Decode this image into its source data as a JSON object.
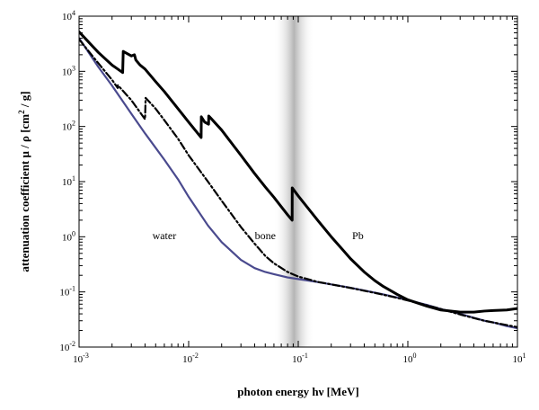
{
  "chart_data": {
    "type": "line",
    "xlabel": "photon energy  hν  [MeV]",
    "ylabel_main": "attenuation coefficient   μ / ρ  [cm",
    "ylabel_exp": "2",
    "ylabel_tail": " / g]",
    "x_scale": "log",
    "y_scale": "log",
    "xlim": [
      0.001,
      10
    ],
    "ylim": [
      0.01,
      10000
    ],
    "grid": false,
    "legend": "none (inline labels)",
    "x_ticks": [
      {
        "base": "10",
        "exp": "-3",
        "value": 0.001
      },
      {
        "base": "10",
        "exp": "-2",
        "value": 0.01
      },
      {
        "base": "10",
        "exp": "-1",
        "value": 0.1
      },
      {
        "base": "10",
        "exp": "0",
        "value": 1
      },
      {
        "base": "10",
        "exp": "1",
        "value": 10
      }
    ],
    "y_ticks": [
      {
        "base": "10",
        "exp": "-2",
        "value": 0.01
      },
      {
        "base": "10",
        "exp": "-1",
        "value": 0.1
      },
      {
        "base": "10",
        "exp": "0",
        "value": 1
      },
      {
        "base": "10",
        "exp": "1",
        "value": 10
      },
      {
        "base": "10",
        "exp": "2",
        "value": 100
      },
      {
        "base": "10",
        "exp": "3",
        "value": 1000
      },
      {
        "base": "10",
        "exp": "4",
        "value": 10000
      }
    ],
    "shaded_band": {
      "x_min": 0.06,
      "x_max": 0.14,
      "color": "#b4b4b4"
    },
    "series": [
      {
        "name": "water",
        "color": "#4a4a8e",
        "style": "solid",
        "label_at": [
          0.006,
          0.9
        ],
        "points": [
          [
            0.001,
            4000
          ],
          [
            0.0015,
            1200
          ],
          [
            0.002,
            550
          ],
          [
            0.003,
            170
          ],
          [
            0.004,
            75
          ],
          [
            0.005,
            41
          ],
          [
            0.006,
            25
          ],
          [
            0.008,
            11
          ],
          [
            0.01,
            5.3
          ],
          [
            0.015,
            1.6
          ],
          [
            0.02,
            0.8
          ],
          [
            0.03,
            0.38
          ],
          [
            0.04,
            0.27
          ],
          [
            0.05,
            0.23
          ],
          [
            0.06,
            0.21
          ],
          [
            0.08,
            0.183
          ],
          [
            0.1,
            0.171
          ],
          [
            0.15,
            0.151
          ],
          [
            0.2,
            0.137
          ],
          [
            0.3,
            0.119
          ],
          [
            0.4,
            0.106
          ],
          [
            0.5,
            0.097
          ],
          [
            0.6,
            0.09
          ],
          [
            0.8,
            0.079
          ],
          [
            1,
            0.071
          ],
          [
            1.5,
            0.058
          ],
          [
            2,
            0.049
          ],
          [
            3,
            0.04
          ],
          [
            4,
            0.034
          ],
          [
            5,
            0.03
          ],
          [
            6,
            0.028
          ],
          [
            8,
            0.024
          ],
          [
            10,
            0.022
          ]
        ]
      },
      {
        "name": "bone",
        "color": "#000000",
        "style": "dashdot",
        "label_at": [
          0.05,
          0.9
        ],
        "points": [
          [
            0.001,
            3800
          ],
          [
            0.0015,
            1400
          ],
          [
            0.002,
            700
          ],
          [
            0.00225,
            500
          ],
          [
            0.00226,
            560
          ],
          [
            0.003,
            300
          ],
          [
            0.004,
            135
          ],
          [
            0.00405,
            330
          ],
          [
            0.005,
            210
          ],
          [
            0.006,
            130
          ],
          [
            0.008,
            60
          ],
          [
            0.01,
            30
          ],
          [
            0.015,
            10
          ],
          [
            0.02,
            4.5
          ],
          [
            0.03,
            1.5
          ],
          [
            0.04,
            0.75
          ],
          [
            0.05,
            0.45
          ],
          [
            0.06,
            0.33
          ],
          [
            0.08,
            0.23
          ],
          [
            0.1,
            0.19
          ],
          [
            0.15,
            0.152
          ],
          [
            0.2,
            0.137
          ],
          [
            0.3,
            0.118
          ],
          [
            0.5,
            0.096
          ],
          [
            0.8,
            0.078
          ],
          [
            1,
            0.07
          ],
          [
            1.5,
            0.057
          ],
          [
            2,
            0.049
          ],
          [
            3,
            0.039
          ],
          [
            5,
            0.03
          ],
          [
            8,
            0.025
          ],
          [
            10,
            0.023
          ]
        ]
      },
      {
        "name": "Pb",
        "color": "#000000",
        "style": "solid",
        "label_at": [
          0.35,
          0.9
        ],
        "points": [
          [
            0.001,
            5200
          ],
          [
            0.0015,
            2200
          ],
          [
            0.002,
            1300
          ],
          [
            0.0025,
            950
          ],
          [
            0.00253,
            2300
          ],
          [
            0.003,
            1900
          ],
          [
            0.0032,
            2000
          ],
          [
            0.0033,
            1600
          ],
          [
            0.0036,
            1300
          ],
          [
            0.004,
            1100
          ],
          [
            0.005,
            650
          ],
          [
            0.006,
            430
          ],
          [
            0.008,
            210
          ],
          [
            0.01,
            120
          ],
          [
            0.013,
            63
          ],
          [
            0.01305,
            150
          ],
          [
            0.014,
            120
          ],
          [
            0.0152,
            110
          ],
          [
            0.01525,
            155
          ],
          [
            0.016,
            140
          ],
          [
            0.02,
            86
          ],
          [
            0.03,
            30
          ],
          [
            0.04,
            14
          ],
          [
            0.05,
            8
          ],
          [
            0.06,
            5.2
          ],
          [
            0.07,
            3.5
          ],
          [
            0.08,
            2.5
          ],
          [
            0.088,
            2.0
          ],
          [
            0.0881,
            7.7
          ],
          [
            0.1,
            5.5
          ],
          [
            0.15,
            2.0
          ],
          [
            0.2,
            1.0
          ],
          [
            0.3,
            0.4
          ],
          [
            0.4,
            0.23
          ],
          [
            0.5,
            0.16
          ],
          [
            0.6,
            0.125
          ],
          [
            0.8,
            0.09
          ],
          [
            1,
            0.072
          ],
          [
            1.5,
            0.055
          ],
          [
            2,
            0.047
          ],
          [
            3,
            0.043
          ],
          [
            4,
            0.043
          ],
          [
            5,
            0.045
          ],
          [
            6,
            0.046
          ],
          [
            8,
            0.047
          ],
          [
            10,
            0.05
          ]
        ]
      }
    ]
  }
}
